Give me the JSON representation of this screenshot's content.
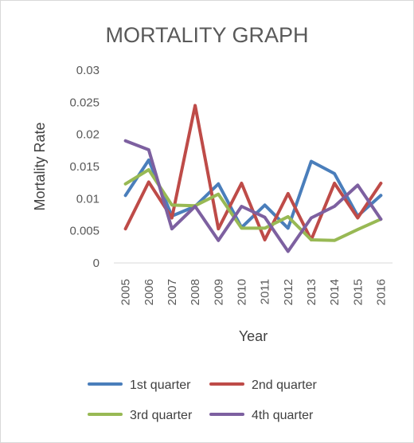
{
  "chart_data": {
    "type": "line",
    "title": "MORTALITY GRAPH",
    "xlabel": "Year",
    "ylabel": "Mortality Rate",
    "categories": [
      "2005",
      "2006",
      "2007",
      "2008",
      "2009",
      "2010",
      "2011",
      "2012",
      "2013",
      "2014",
      "2015",
      "2016"
    ],
    "ylim": [
      0,
      0.03
    ],
    "yticks": [
      "0",
      "0.005",
      "0.01",
      "0.015",
      "0.02",
      "0.025",
      "0.03"
    ],
    "grid": false,
    "legend_position": "bottom",
    "series": [
      {
        "name": "1st quarter",
        "color": "#4a7ebb",
        "values": [
          0.0105,
          0.016,
          0.0073,
          0.0088,
          0.0123,
          0.0055,
          0.009,
          0.0054,
          0.0158,
          0.0139,
          0.0073,
          0.0105
        ]
      },
      {
        "name": "2nd quarter",
        "color": "#be4b48",
        "values": [
          0.0053,
          0.0126,
          0.007,
          0.0245,
          0.0053,
          0.0124,
          0.0036,
          0.0108,
          0.0036,
          0.0124,
          0.007,
          0.0124
        ]
      },
      {
        "name": "3rd quarter",
        "color": "#98b954",
        "values": [
          0.0123,
          0.0145,
          0.009,
          0.0089,
          0.0107,
          0.0054,
          0.0054,
          0.0072,
          0.0036,
          0.0035,
          0.0052,
          0.0068
        ]
      },
      {
        "name": "4th quarter",
        "color": "#7d60a0",
        "values": [
          0.019,
          0.0176,
          0.0053,
          0.0088,
          0.0035,
          0.0088,
          0.0071,
          0.0018,
          0.007,
          0.0088,
          0.0121,
          0.0068
        ]
      }
    ]
  }
}
